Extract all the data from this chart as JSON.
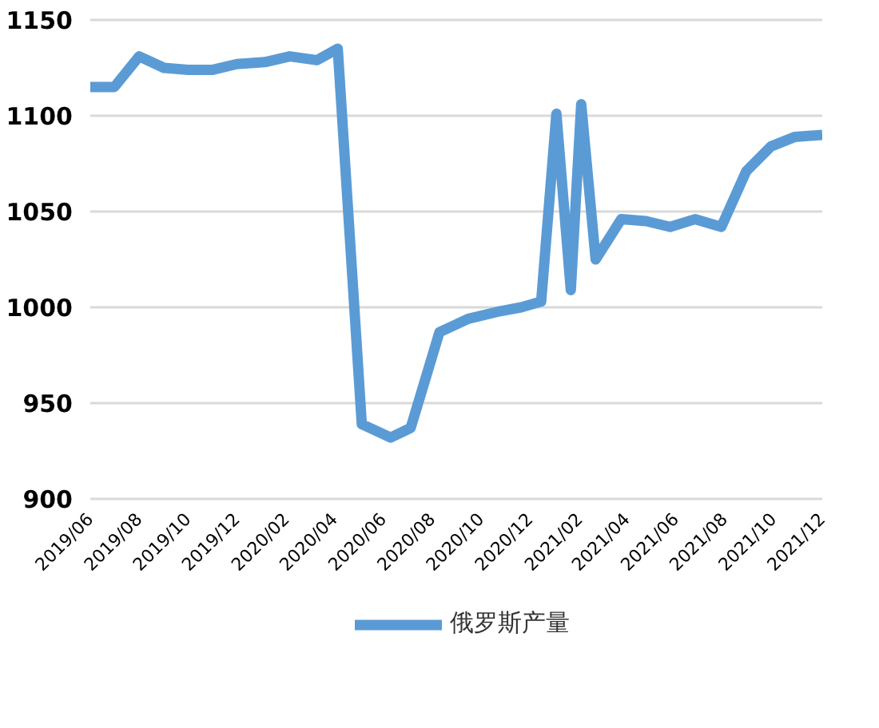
{
  "chart_data": {
    "type": "line",
    "x": [
      "2019-06-01",
      "2019-07-01",
      "2019-08-01",
      "2019-09-01",
      "2019-10-01",
      "2019-11-01",
      "2019-12-01",
      "2020-01-05",
      "2020-02-05",
      "2020-03-10",
      "2020-04-05",
      "2020-05-05",
      "2020-06-10",
      "2020-07-05",
      "2020-08-10",
      "2020-09-15",
      "2020-10-25",
      "2020-11-20",
      "2020-12-15",
      "2021-01-03",
      "2021-01-21",
      "2021-02-03",
      "2021-02-21",
      "2021-03-25",
      "2021-04-25",
      "2021-05-25",
      "2021-06-25",
      "2021-07-28",
      "2021-08-28",
      "2021-09-28",
      "2021-10-28",
      "2021-12-01"
    ],
    "series": [
      {
        "name": "俄罗斯产量",
        "color": "#5b9bd5",
        "values": [
          1115,
          1115,
          1131,
          1125,
          1124,
          1124,
          1127,
          1128,
          1131,
          1129,
          1135,
          939,
          932,
          937,
          987,
          994,
          998,
          1000,
          1003,
          1101,
          1009,
          1106,
          1025,
          1046,
          1045,
          1042,
          1046,
          1042,
          1071,
          1084,
          1089,
          1090
        ]
      }
    ],
    "xlim": [
      "2019-06-01",
      "2021-12-01"
    ],
    "xticks": [
      {
        "value": "2019-06-01",
        "label": "2019/06"
      },
      {
        "value": "2019-08-01",
        "label": "2019/08"
      },
      {
        "value": "2019-10-01",
        "label": "2019/10"
      },
      {
        "value": "2019-12-01",
        "label": "2019/12"
      },
      {
        "value": "2020-02-01",
        "label": "2020/02"
      },
      {
        "value": "2020-04-01",
        "label": "2020/04"
      },
      {
        "value": "2020-06-01",
        "label": "2020/06"
      },
      {
        "value": "2020-08-01",
        "label": "2020/08"
      },
      {
        "value": "2020-10-01",
        "label": "2020/10"
      },
      {
        "value": "2020-12-01",
        "label": "2020/12"
      },
      {
        "value": "2021-02-01",
        "label": "2021/02"
      },
      {
        "value": "2021-04-01",
        "label": "2021/04"
      },
      {
        "value": "2021-06-01",
        "label": "2021/06"
      },
      {
        "value": "2021-08-01",
        "label": "2021/08"
      },
      {
        "value": "2021-10-01",
        "label": "2021/10"
      },
      {
        "value": "2021-12-01",
        "label": "2021/12"
      }
    ],
    "ylim": [
      900,
      1150
    ],
    "yticks": [
      900,
      950,
      1000,
      1050,
      1100,
      1150
    ],
    "grid": "y",
    "legend": "bottom",
    "marker": "none",
    "line_style": "solid"
  }
}
